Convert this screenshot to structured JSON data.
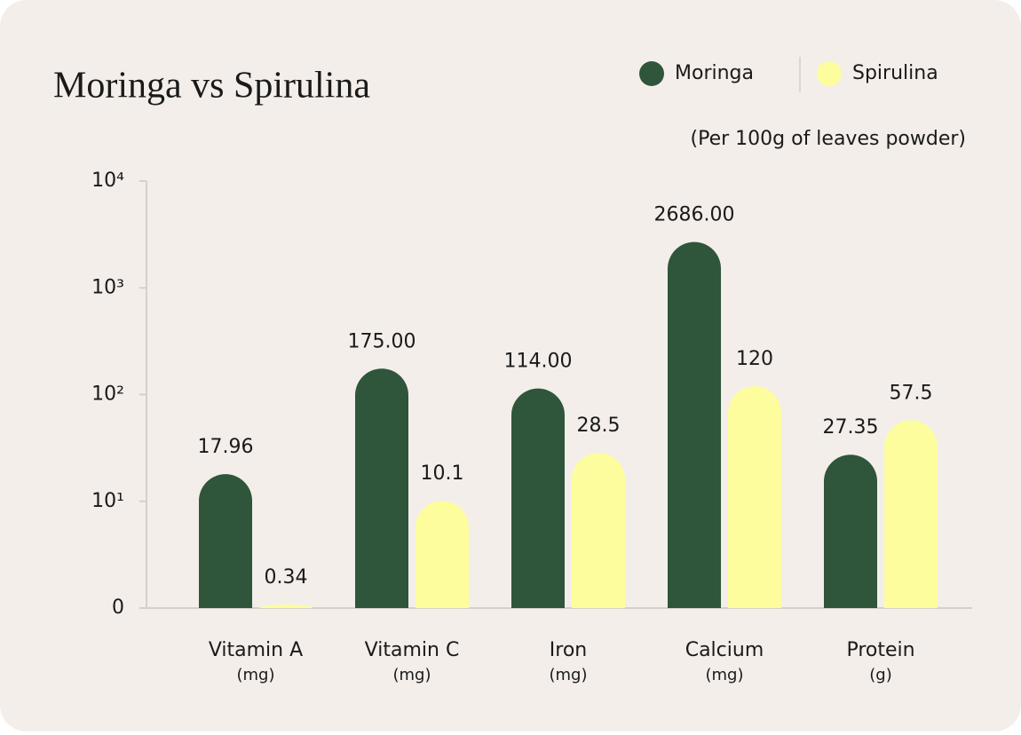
{
  "chart_data": {
    "type": "bar",
    "title": "Moringa vs Spirulina",
    "subtitle": "(Per 100g of leaves powder)",
    "categories": [
      "Vitamin A",
      "Vitamin C",
      "Iron",
      "Calcium",
      "Protein"
    ],
    "category_units": [
      "(mg)",
      "(mg)",
      "(mg)",
      "(mg)",
      "(g)"
    ],
    "series": [
      {
        "name": "Moringa",
        "color": "#2f553a",
        "values": [
          17.96,
          175,
          114,
          2686,
          27.35
        ],
        "value_labels": [
          "17.96",
          "175.00",
          "114.00",
          "2686.00",
          "27.35"
        ]
      },
      {
        "name": "Spirulina",
        "color": "#fdfd9e",
        "values": [
          0.34,
          10.1,
          28.5,
          120,
          57.5
        ]
      }
    ],
    "scale": "symlog",
    "linthresh": 10,
    "ylim": [
      0,
      10000
    ],
    "yticks": [
      0,
      {
        "value": 10,
        "label": "10¹"
      },
      {
        "value": 100,
        "label": "10²"
      },
      {
        "value": 1000,
        "label": "10³"
      },
      {
        "value": 10000,
        "label": "10⁴"
      }
    ],
    "legend": "top-right",
    "grid": false
  }
}
